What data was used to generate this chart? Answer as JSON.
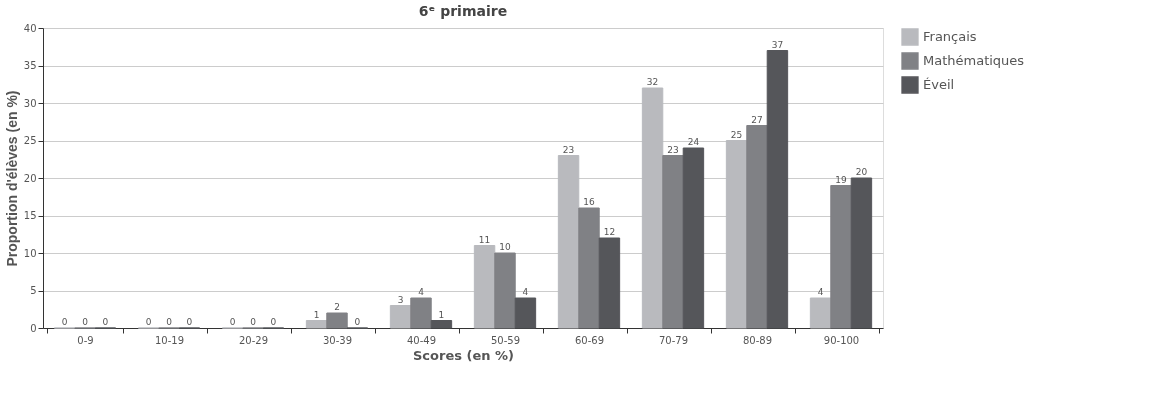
{
  "chart_data": {
    "type": "bar",
    "title": "6ᵉ primaire",
    "xlabel": "Scores (en %)",
    "ylabel": "Proportion d'élèves (en %)",
    "categories": [
      "0-9",
      "10-19",
      "20-29",
      "30-39",
      "40-49",
      "50-59",
      "60-69",
      "70-79",
      "80-89",
      "90-100"
    ],
    "series": [
      {
        "name": "Français",
        "color": "#b9babe",
        "values": [
          0,
          0,
          0,
          1,
          3,
          11,
          23,
          32,
          25,
          4
        ]
      },
      {
        "name": "Mathématiques",
        "color": "#808185",
        "values": [
          0,
          0,
          0,
          2,
          4,
          10,
          16,
          23,
          27,
          19
        ]
      },
      {
        "name": "Éveil",
        "color": "#55565a",
        "values": [
          0,
          0,
          0,
          0,
          1,
          4,
          12,
          24,
          37,
          20
        ]
      }
    ],
    "ylim": [
      0,
      40
    ],
    "yticks": [
      0,
      5,
      10,
      15,
      20,
      25,
      30,
      35,
      40
    ],
    "grid": "y",
    "legend": "right",
    "data_labels": true
  }
}
